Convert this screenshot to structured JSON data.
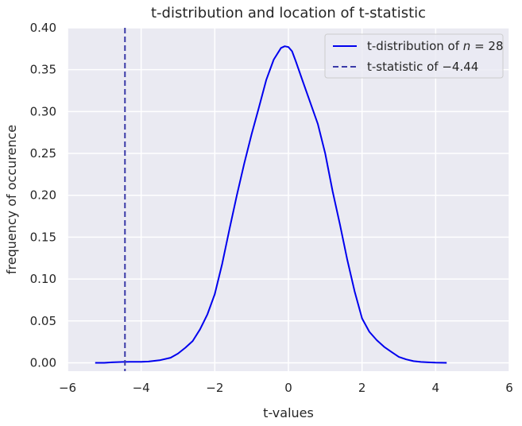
{
  "chart_data": {
    "type": "line",
    "title": "t-distribution and location of t-statistic",
    "xlabel": "t-values",
    "ylabel": "frequency of occurence",
    "xlim": [
      -6,
      6
    ],
    "ylim": [
      -0.01,
      0.4
    ],
    "xticks": [
      -6,
      -4,
      -2,
      0,
      2,
      4,
      6
    ],
    "xtick_labels": [
      "−6",
      "−4",
      "−2",
      "0",
      "2",
      "4",
      "6"
    ],
    "yticks": [
      0.0,
      0.05,
      0.1,
      0.15,
      0.2,
      0.25,
      0.3,
      0.35,
      0.4
    ],
    "ytick_labels": [
      "0.00",
      "0.05",
      "0.10",
      "0.15",
      "0.20",
      "0.25",
      "0.30",
      "0.35",
      "0.40"
    ],
    "grid": true,
    "legend_position": "top-right",
    "series": [
      {
        "name": "t-distribution of n = 28",
        "name_parts": [
          "t-distribution of ",
          "n",
          " = 28"
        ],
        "style": "solid",
        "color": "#0000ee",
        "x": [
          -5.25,
          -5.0,
          -4.8,
          -4.5,
          -4.3,
          -4.0,
          -3.8,
          -3.5,
          -3.2,
          -3.0,
          -2.8,
          -2.6,
          -2.4,
          -2.2,
          -2.0,
          -1.8,
          -1.6,
          -1.4,
          -1.2,
          -1.0,
          -0.8,
          -0.6,
          -0.4,
          -0.2,
          -0.1,
          0.0,
          0.1,
          0.2,
          0.4,
          0.6,
          0.8,
          1.0,
          1.2,
          1.4,
          1.6,
          1.8,
          2.0,
          2.2,
          2.4,
          2.6,
          2.8,
          3.0,
          3.2,
          3.4,
          3.6,
          3.8,
          4.0,
          4.3
        ],
        "y": [
          0.0,
          0.0,
          0.0005,
          0.001,
          0.0012,
          0.0012,
          0.0015,
          0.003,
          0.006,
          0.011,
          0.018,
          0.026,
          0.04,
          0.058,
          0.082,
          0.118,
          0.16,
          0.2,
          0.238,
          0.273,
          0.305,
          0.338,
          0.362,
          0.376,
          0.378,
          0.377,
          0.372,
          0.36,
          0.335,
          0.31,
          0.285,
          0.25,
          0.205,
          0.165,
          0.123,
          0.085,
          0.053,
          0.037,
          0.027,
          0.019,
          0.013,
          0.007,
          0.004,
          0.002,
          0.001,
          0.0005,
          0.0002,
          0.0
        ]
      },
      {
        "name": "t-statistic of −4.44",
        "name_parts": [
          "t-statistic of ",
          "−4.44"
        ],
        "style": "dashed",
        "color": "#3a3aa8",
        "vline_x": -4.44
      }
    ]
  }
}
